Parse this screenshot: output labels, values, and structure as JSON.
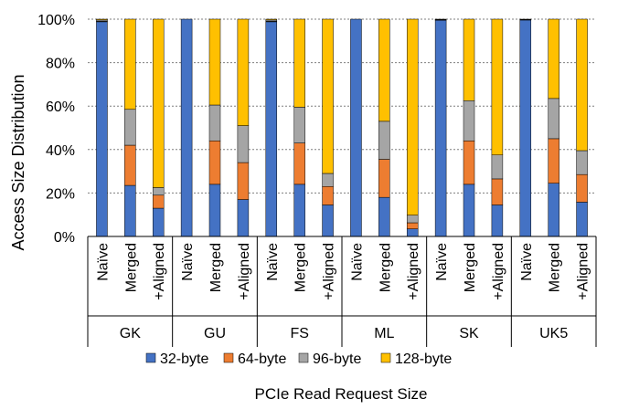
{
  "chart_data": {
    "type": "bar",
    "stacked": true,
    "ylabel": "Access Size Distribution",
    "xlabel": "PCIe Read Request Size",
    "ylim": [
      0,
      100
    ],
    "yticks": [
      "0%",
      "20%",
      "40%",
      "60%",
      "80%",
      "100%"
    ],
    "grid": true,
    "legend_position": "bottom",
    "groups": [
      "GK",
      "GU",
      "FS",
      "ML",
      "SK",
      "UK5"
    ],
    "categories": [
      "Naïve",
      "Merged",
      "+Aligned"
    ],
    "series": [
      {
        "name": "32-byte",
        "color": "#4472C4",
        "values": [
          [
            98.8,
            23.5,
            13.0
          ],
          [
            100,
            24.0,
            17.0
          ],
          [
            98.8,
            24.0,
            14.5
          ],
          [
            100,
            18.0,
            3.5
          ],
          [
            99.5,
            24.0,
            14.5
          ],
          [
            99.6,
            24.5,
            15.8
          ]
        ]
      },
      {
        "name": "64-byte",
        "color": "#ED7D31",
        "values": [
          [
            0.2,
            18.5,
            6.0
          ],
          [
            0,
            20.0,
            17.0
          ],
          [
            0.2,
            19.0,
            8.5
          ],
          [
            0,
            17.5,
            2.8
          ],
          [
            0.2,
            20.0,
            12.0
          ],
          [
            0.2,
            20.5,
            12.7
          ]
        ]
      },
      {
        "name": "96-byte",
        "color": "#A5A5A5",
        "values": [
          [
            0.6,
            16.5,
            3.5
          ],
          [
            0,
            16.5,
            17.0
          ],
          [
            0.6,
            16.5,
            6.0
          ],
          [
            0,
            17.5,
            3.5
          ],
          [
            0.2,
            18.5,
            11.0
          ],
          [
            0.1,
            18.5,
            11.0
          ]
        ]
      },
      {
        "name": "128-byte",
        "color": "#FFC000",
        "values": [
          [
            0.4,
            41.5,
            77.5
          ],
          [
            0,
            39.5,
            49.0
          ],
          [
            0.4,
            40.5,
            71.0
          ],
          [
            0,
            47.0,
            90.2
          ],
          [
            0.1,
            37.5,
            62.5
          ],
          [
            0.1,
            36.5,
            60.5
          ]
        ]
      }
    ]
  }
}
